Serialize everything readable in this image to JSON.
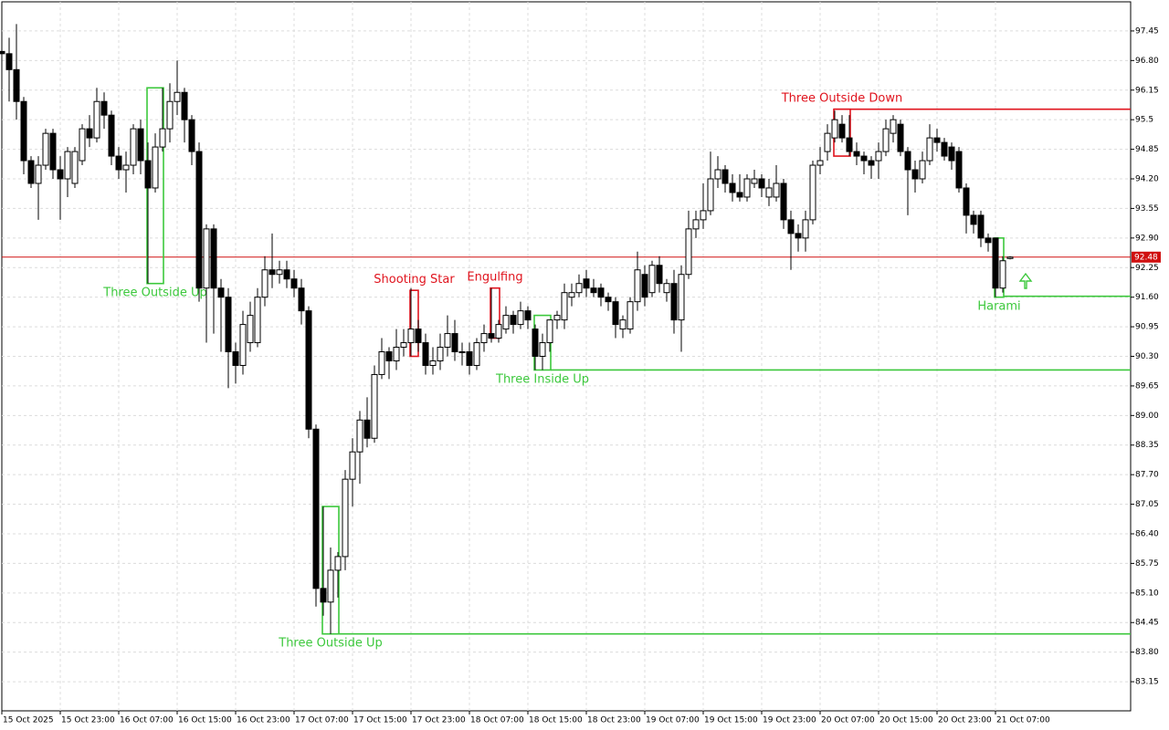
{
  "chart_data": {
    "type": "candlestick",
    "categories": [
      "15 Oct 2025",
      null,
      null,
      null,
      null,
      null,
      null,
      null,
      "15 Oct 23:00",
      null,
      null,
      null,
      null,
      null,
      null,
      null,
      "16 Oct 07:00",
      null,
      null,
      null,
      null,
      null,
      null,
      null,
      "16 Oct 15:00",
      null,
      null,
      null,
      null,
      null,
      null,
      null,
      "16 Oct 23:00",
      null,
      null,
      null,
      null,
      null,
      null,
      null,
      "17 Oct 07:00",
      null,
      null,
      null,
      null,
      null,
      null,
      null,
      "17 Oct 15:00",
      null,
      null,
      null,
      null,
      null,
      null,
      null,
      "17 Oct 23:00",
      null,
      null,
      null,
      null,
      null,
      null,
      null,
      "18 Oct 07:00",
      null,
      null,
      null,
      null,
      null,
      null,
      null,
      "18 Oct 15:00",
      null,
      null,
      null,
      null,
      null,
      null,
      null,
      "18 Oct 23:00",
      null,
      null,
      null,
      null,
      null,
      null,
      null,
      "19 Oct 07:00",
      null,
      null,
      null,
      null,
      null,
      null,
      null,
      "19 Oct 15:00",
      null,
      null,
      null,
      null,
      null,
      null,
      null,
      "19 Oct 23:00",
      null,
      null,
      null,
      null,
      null,
      null,
      null,
      "20 Oct 07:00",
      null,
      null,
      null,
      null,
      null,
      null,
      null,
      "20 Oct 15:00",
      null,
      null,
      null,
      null,
      null,
      null,
      null,
      "20 Oct 23:00",
      null,
      null,
      null,
      null,
      null,
      null,
      null,
      "21 Oct 07:00",
      null,
      null
    ],
    "open": [
      97.0,
      96.95,
      96.6,
      95.9,
      94.6,
      94.1,
      94.5,
      95.2,
      94.4,
      94.2,
      94.1,
      94.6,
      95.3,
      95.1,
      95.9,
      95.6,
      94.7,
      94.4,
      94.5,
      95.3,
      94.6,
      94.0,
      94.9,
      95.3,
      95.9,
      96.1,
      95.5,
      94.8,
      91.8,
      93.1,
      91.8,
      91.6,
      90.4,
      90.1,
      90.6,
      90.6,
      91.6,
      92.2,
      92.1,
      92.2,
      92.0,
      91.8,
      91.3,
      88.7,
      85.2,
      84.9,
      85.6,
      85.9,
      87.6,
      88.2,
      88.9,
      88.5,
      89.9,
      90.4,
      90.2,
      90.5,
      90.6,
      90.9,
      90.6,
      90.1,
      90.2,
      90.5,
      90.8,
      90.4,
      90.4,
      90.1,
      90.6,
      90.8,
      90.7,
      90.9,
      91.2,
      91.0,
      91.3,
      90.9,
      90.3,
      90.6,
      91.1,
      91.1,
      91.6,
      91.7,
      92.0,
      91.8,
      91.8,
      91.6,
      91.5,
      90.9,
      90.9,
      91.5,
      92.1,
      91.7,
      92.3,
      91.7,
      91.9,
      91.1,
      92.1,
      93.1,
      93.3,
      93.5,
      94.2,
      94.4,
      94.1,
      93.9,
      93.8,
      94.1,
      94.2,
      93.8,
      93.8,
      94.1,
      93.3,
      93.0,
      92.9,
      93.3,
      94.5,
      94.8,
      95.1,
      95.4,
      95.1,
      94.8,
      94.7,
      94.6,
      94.6,
      94.8,
      95.2,
      95.4,
      94.8,
      94.4,
      94.2,
      94.6,
      95.1,
      95.0,
      94.9,
      94.8,
      94.0,
      93.4,
      93.4,
      92.9,
      92.9,
      91.8,
      92.45
    ],
    "high": [
      97.3,
      97.3,
      97.6,
      96.0,
      94.7,
      94.7,
      95.3,
      95.3,
      94.7,
      94.9,
      94.9,
      95.4,
      95.6,
      96.2,
      96.1,
      95.7,
      94.9,
      94.8,
      95.4,
      95.5,
      95.0,
      95.2,
      96.2,
      96.3,
      96.8,
      96.2,
      95.6,
      95.0,
      93.2,
      93.2,
      92.0,
      91.8,
      90.6,
      91.3,
      91.5,
      91.8,
      92.5,
      93.0,
      92.4,
      92.4,
      92.2,
      92.0,
      91.4,
      88.8,
      87.0,
      86.1,
      86.0,
      87.8,
      88.5,
      89.1,
      89.4,
      90.1,
      90.7,
      90.5,
      90.9,
      90.9,
      91.8,
      91.1,
      90.8,
      90.5,
      90.8,
      91.2,
      91.1,
      90.6,
      90.6,
      90.7,
      91.0,
      91.8,
      91.1,
      91.4,
      91.3,
      91.5,
      91.4,
      91.0,
      90.8,
      91.1,
      91.3,
      91.9,
      91.9,
      92.1,
      92.2,
      92.0,
      91.9,
      91.7,
      91.6,
      91.2,
      91.6,
      92.6,
      92.3,
      92.4,
      92.5,
      92.0,
      92.2,
      92.3,
      93.5,
      93.5,
      94.1,
      94.8,
      94.7,
      94.5,
      94.3,
      94.3,
      94.3,
      94.4,
      94.3,
      94.2,
      94.5,
      94.2,
      93.5,
      93.2,
      93.5,
      94.6,
      94.9,
      95.4,
      95.7,
      95.6,
      95.6,
      95.0,
      94.8,
      94.7,
      95.0,
      95.5,
      95.6,
      95.5,
      94.9,
      94.6,
      94.8,
      95.4,
      95.3,
      95.1,
      95.0,
      94.9,
      94.1,
      93.5,
      93.5,
      93.0,
      92.9,
      92.5,
      92.5
    ],
    "low": [
      96.5,
      95.9,
      95.5,
      94.3,
      94.0,
      93.3,
      94.4,
      94.2,
      93.3,
      93.8,
      94.0,
      94.5,
      94.9,
      95.0,
      95.3,
      94.5,
      94.2,
      93.9,
      94.3,
      94.3,
      91.9,
      93.9,
      94.8,
      95.0,
      95.6,
      95.0,
      94.5,
      91.5,
      90.6,
      90.8,
      90.4,
      89.6,
      89.7,
      89.9,
      90.4,
      90.5,
      91.4,
      91.8,
      91.9,
      91.8,
      91.6,
      91.0,
      88.5,
      84.8,
      84.6,
      84.2,
      85.0,
      85.6,
      87.0,
      87.5,
      88.3,
      88.4,
      89.8,
      89.8,
      90.0,
      90.3,
      90.3,
      90.4,
      89.9,
      89.9,
      90.0,
      90.3,
      90.2,
      90.1,
      89.9,
      90.0,
      90.4,
      90.6,
      90.6,
      90.8,
      90.8,
      90.9,
      90.9,
      90.0,
      90.0,
      90.4,
      90.9,
      90.9,
      91.4,
      91.6,
      91.6,
      91.6,
      91.4,
      91.3,
      90.7,
      90.7,
      90.8,
      91.3,
      91.4,
      91.6,
      91.7,
      91.5,
      90.8,
      90.4,
      92.0,
      92.9,
      93.1,
      93.4,
      94.0,
      93.9,
      93.7,
      93.7,
      93.7,
      94.0,
      93.8,
      93.6,
      93.7,
      93.1,
      92.2,
      92.6,
      92.6,
      93.2,
      94.3,
      94.6,
      95.0,
      95.0,
      94.7,
      94.5,
      94.3,
      94.2,
      94.2,
      94.7,
      95.0,
      94.7,
      93.4,
      93.9,
      94.1,
      94.5,
      94.8,
      94.6,
      94.4,
      93.9,
      93.0,
      93.0,
      92.7,
      92.6,
      91.6,
      91.7,
      92.43
    ],
    "close": [
      96.95,
      96.6,
      95.9,
      94.6,
      94.1,
      94.5,
      95.2,
      94.4,
      94.2,
      94.8,
      94.8,
      95.3,
      95.1,
      95.9,
      95.6,
      94.7,
      94.4,
      94.5,
      95.3,
      94.6,
      94.0,
      94.9,
      95.3,
      95.9,
      96.1,
      95.5,
      94.8,
      91.8,
      93.1,
      91.8,
      91.6,
      90.4,
      90.1,
      91.0,
      91.2,
      91.6,
      92.2,
      92.1,
      92.2,
      92.0,
      91.8,
      91.3,
      88.7,
      85.2,
      84.9,
      85.6,
      85.9,
      87.6,
      88.2,
      88.9,
      88.5,
      89.9,
      90.4,
      90.2,
      90.5,
      90.6,
      90.9,
      90.6,
      90.1,
      90.2,
      90.5,
      90.8,
      90.4,
      90.4,
      90.1,
      90.6,
      90.8,
      90.7,
      91.0,
      91.2,
      91.0,
      91.3,
      91.1,
      90.3,
      90.6,
      91.1,
      91.2,
      91.7,
      91.7,
      91.9,
      91.8,
      91.7,
      91.6,
      91.5,
      91.0,
      91.1,
      91.5,
      92.2,
      91.6,
      92.3,
      91.9,
      91.9,
      91.1,
      92.1,
      93.1,
      93.3,
      93.5,
      94.2,
      94.4,
      94.1,
      93.9,
      93.8,
      94.2,
      94.2,
      94.0,
      94.0,
      94.1,
      93.3,
      93.0,
      92.9,
      93.3,
      94.5,
      94.6,
      95.2,
      95.5,
      95.1,
      94.8,
      94.7,
      94.6,
      94.5,
      94.8,
      95.3,
      95.5,
      94.8,
      94.4,
      94.2,
      94.6,
      95.1,
      95.0,
      94.7,
      94.6,
      94.0,
      93.4,
      93.2,
      92.9,
      92.8,
      91.8,
      92.4,
      92.48
    ],
    "up_color": "#ffffff",
    "down_color": "#000000",
    "ylim": [
      82.51,
      98.09
    ],
    "yticks": [
      97.45,
      {
        "value": 96.8,
        "label": "96.80"
      },
      96.15,
      95.5,
      94.85,
      {
        "value": 94.2,
        "label": "94.20"
      },
      93.55,
      {
        "value": 92.9,
        "label": "92.90"
      },
      92.25,
      {
        "value": 91.6,
        "label": "91.60"
      },
      90.95,
      {
        "value": 90.3,
        "label": "90.30"
      },
      89.65,
      {
        "value": 89.0,
        "label": "89.00"
      },
      88.35,
      {
        "value": 87.7,
        "label": "87.70"
      },
      87.05,
      {
        "value": 86.4,
        "label": "86.40"
      },
      85.75,
      {
        "value": 85.1,
        "label": "85.10"
      },
      84.45,
      {
        "value": 83.8,
        "label": "83.80"
      },
      83.15
    ],
    "grid": true,
    "current_price": 92.48,
    "current_price_color": "#d01010",
    "patterns": [
      {
        "label": "Three Outside Up",
        "color": "#3cc83c",
        "high": 96.2,
        "low": 91.9
      },
      {
        "label": "Three Outside Up",
        "color": "#3cc83c",
        "high": 87.0,
        "low": 84.2,
        "level": 84.2
      },
      {
        "label": "Shooting Star",
        "color": "#e0141e",
        "high": 91.75,
        "low": 90.3
      },
      {
        "label": "Engulfing",
        "color": "#e0141e",
        "high": 91.8,
        "low": 90.7
      },
      {
        "label": "Three Inside Up",
        "color": "#3cc83c",
        "high": 91.2,
        "low": 90.0,
        "level": 90.0
      },
      {
        "label": "Three Outside Down",
        "color": "#e0141e",
        "high": 95.73,
        "low": 94.7,
        "level": 95.73
      },
      {
        "label": "Harami",
        "color": "#3cc83c",
        "high": 92.9,
        "low": 91.6,
        "level": 91.62
      }
    ]
  }
}
